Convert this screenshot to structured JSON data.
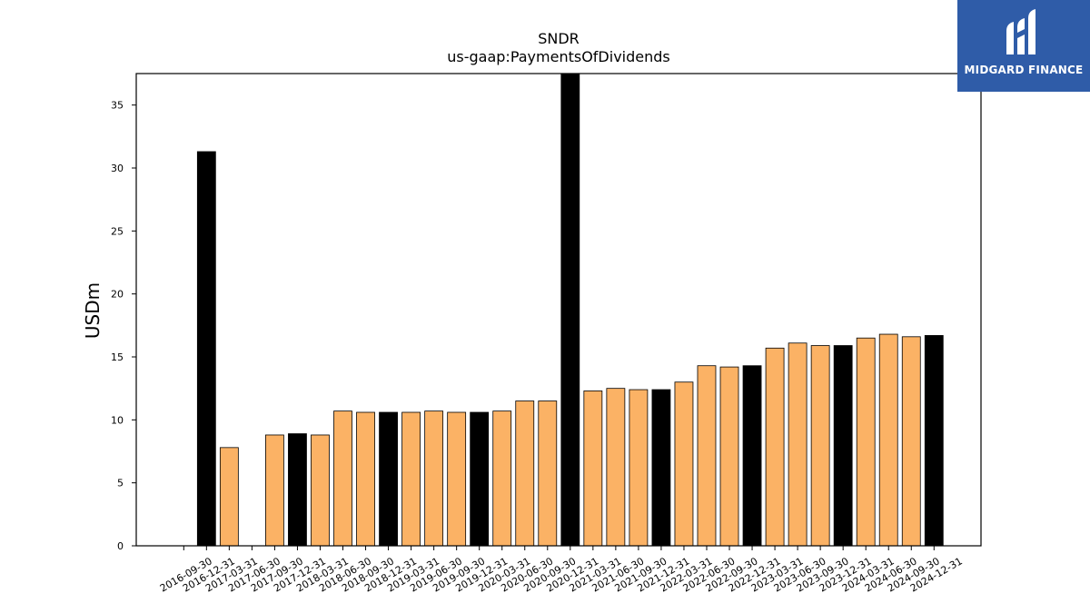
{
  "chart_data": {
    "type": "bar",
    "title": "SNDR",
    "subtitle": "us-gaap:PaymentsOfDividends",
    "ylabel": "USDm",
    "ylim": [
      0,
      37.5
    ],
    "yticks": [
      0,
      5,
      10,
      15,
      20,
      25,
      30,
      35
    ],
    "grid": false,
    "categories": [
      "2016-09-30",
      "2016-12-31",
      "2017-03-31",
      "2017-06-30",
      "2017-09-30",
      "2017-12-31",
      "2018-03-31",
      "2018-06-30",
      "2018-09-30",
      "2018-12-31",
      "2019-03-31",
      "2019-06-30",
      "2019-09-30",
      "2019-12-31",
      "2020-03-31",
      "2020-06-30",
      "2020-09-30",
      "2020-12-31",
      "2021-03-31",
      "2021-06-30",
      "2021-09-30",
      "2021-12-31",
      "2022-03-31",
      "2022-06-30",
      "2022-09-30",
      "2022-12-31",
      "2023-03-31",
      "2023-06-30",
      "2023-09-30",
      "2023-12-31",
      "2024-03-31",
      "2024-06-30",
      "2024-09-30",
      "2024-12-31"
    ],
    "values": [
      null,
      31.3,
      7.8,
      null,
      8.8,
      8.9,
      8.8,
      10.7,
      10.6,
      10.6,
      10.6,
      10.7,
      10.6,
      10.6,
      10.7,
      11.5,
      11.5,
      37.5,
      12.3,
      12.5,
      12.4,
      12.4,
      13.0,
      14.3,
      14.2,
      14.3,
      15.7,
      16.1,
      15.9,
      15.9,
      16.5,
      16.8,
      16.6,
      16.7
    ],
    "bar_colors": [
      "#fbb265",
      "#000000",
      "#fbb265",
      "#fbb265",
      "#fbb265",
      "#000000",
      "#fbb265",
      "#fbb265",
      "#fbb265",
      "#000000",
      "#fbb265",
      "#fbb265",
      "#fbb265",
      "#000000",
      "#fbb265",
      "#fbb265",
      "#fbb265",
      "#000000",
      "#fbb265",
      "#fbb265",
      "#fbb265",
      "#000000",
      "#fbb265",
      "#fbb265",
      "#fbb265",
      "#000000",
      "#fbb265",
      "#fbb265",
      "#fbb265",
      "#000000",
      "#fbb265",
      "#fbb265",
      "#fbb265",
      "#000000"
    ]
  },
  "logo": {
    "text": "MIDGARD FINANCE",
    "background": "#2f5ca8"
  }
}
